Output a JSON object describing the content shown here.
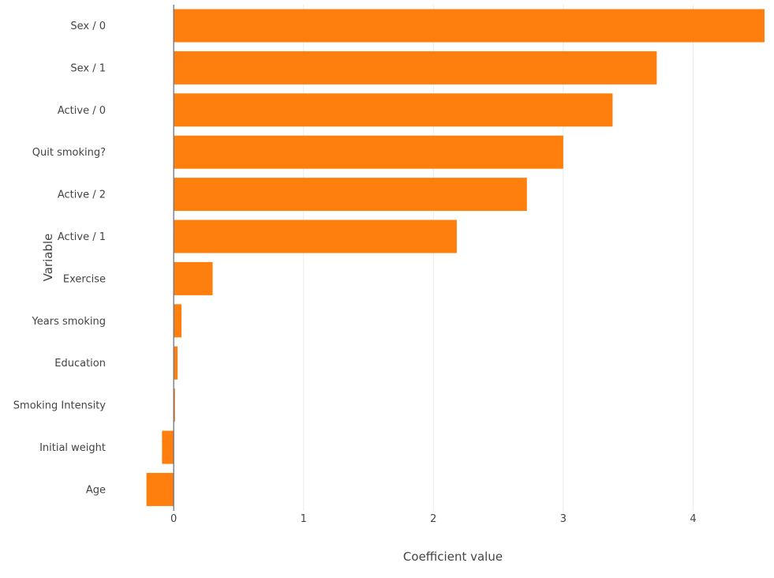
{
  "chart_data": {
    "type": "bar",
    "orientation": "horizontal",
    "xlabel": "Coefficient value",
    "ylabel": "Variable",
    "xlim": [
      -0.25,
      4.55
    ],
    "xticks": [
      0,
      1,
      2,
      3,
      4
    ],
    "grid": true,
    "bar_color": "#ff7f0e",
    "categories": [
      "Sex / 0",
      "Sex / 1",
      "Active / 0",
      "Quit smoking?",
      "Active / 2",
      "Active / 1",
      "Exercise",
      "Years smoking",
      "Education",
      "Smoking Intensity",
      "Initial weight",
      "Age"
    ],
    "values": [
      4.55,
      3.72,
      3.38,
      3.0,
      2.72,
      2.18,
      0.3,
      0.06,
      0.03,
      0.01,
      -0.09,
      -0.21
    ]
  }
}
